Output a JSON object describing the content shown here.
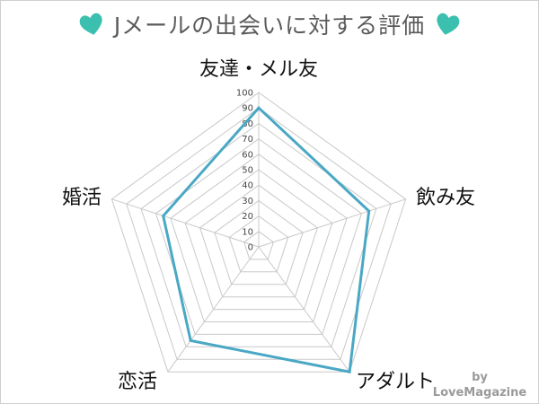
{
  "title": "Jメールの出会いに対する評価",
  "colors": {
    "heart": "#3bbfae",
    "series": "#4aa8c4",
    "grid": "#c8c8c8",
    "title": "#5a5a5a",
    "credit": "#9a9a9a"
  },
  "credit": {
    "by": "by",
    "brand": "LoveMagazine"
  },
  "chart_data": {
    "type": "radar",
    "categories": [
      "友達・メル友",
      "飲み友",
      "アダルト",
      "恋活",
      "婚活"
    ],
    "series": [
      {
        "values": [
          90,
          75,
          100,
          75,
          65
        ]
      }
    ],
    "rlim": [
      0,
      100
    ],
    "ticks": [
      0,
      10,
      20,
      30,
      40,
      50,
      60,
      70,
      80,
      90,
      100
    ],
    "grid": true
  }
}
